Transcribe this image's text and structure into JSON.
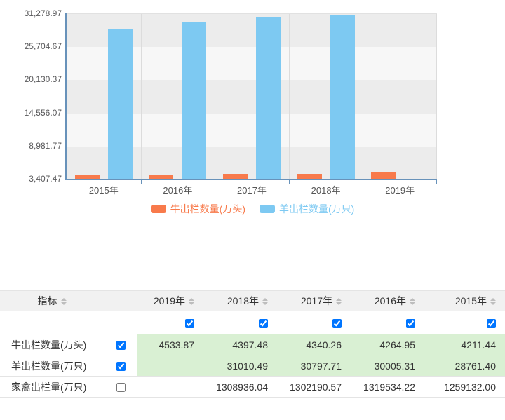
{
  "chart_data": {
    "type": "bar",
    "categories": [
      "2015年",
      "2016年",
      "2017年",
      "2018年",
      "2019年"
    ],
    "series": [
      {
        "id": "cattle",
        "name": "牛出栏数量(万头)",
        "color": "#f87a4b",
        "values": [
          4211.44,
          4264.95,
          4340.26,
          4397.48,
          4533.87
        ]
      },
      {
        "id": "sheep",
        "name": "羊出栏数量(万只)",
        "color": "#7dc9f2",
        "values": [
          28761.4,
          30005.31,
          30797.71,
          31010.49,
          null
        ]
      }
    ],
    "y_tick_labels_top_to_bottom": [
      "31,278.97",
      "25,704.67",
      "20,130.37",
      "14,556.07",
      "8,981.77",
      "3,407.47"
    ],
    "ylim": [
      3407.47,
      31278.97
    ],
    "title": "",
    "xlabel": "",
    "ylabel": "",
    "legend_position": "bottom",
    "grid": "alternating-horizontal-bands",
    "band_colors": [
      "#ececec",
      "#f7f7f7"
    ],
    "axis_color": "#6892ba"
  },
  "table": {
    "indicator_header": "指标",
    "year_columns": [
      {
        "id": "2019",
        "label": "2019年",
        "checked": true
      },
      {
        "id": "2018",
        "label": "2018年",
        "checked": true
      },
      {
        "id": "2017",
        "label": "2017年",
        "checked": true
      },
      {
        "id": "2016",
        "label": "2016年",
        "checked": true
      },
      {
        "id": "2015",
        "label": "2015年",
        "checked": true
      }
    ],
    "rows": [
      {
        "id": "cattle",
        "label": "牛出栏数量(万头)",
        "checked": true,
        "highlighted": true,
        "values": [
          "4533.87",
          "4397.48",
          "4340.26",
          "4264.95",
          "4211.44"
        ]
      },
      {
        "id": "sheep",
        "label": "羊出栏数量(万只)",
        "checked": true,
        "highlighted": true,
        "values": [
          "",
          "31010.49",
          "30797.71",
          "30005.31",
          "28761.40"
        ]
      },
      {
        "id": "poultry",
        "label": "家禽出栏量(万只)",
        "checked": false,
        "highlighted": false,
        "values": [
          "",
          "1308936.04",
          "1302190.57",
          "1319534.22",
          "1259132.00"
        ]
      }
    ],
    "highlight_color": "#d9f0d3"
  }
}
